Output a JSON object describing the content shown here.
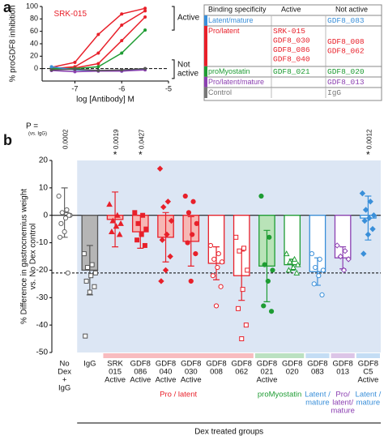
{
  "panel_labels": [
    "a",
    "b"
  ],
  "chart_data": [
    {
      "type": "line",
      "xlabel": "log [Antibody] M",
      "ylabel": "% proGDF8 inhibition",
      "xlim": [
        -7.7,
        -5.0
      ],
      "xticks": [
        -7,
        -6,
        -5
      ],
      "ylim": [
        -20,
        100
      ],
      "yticks": [
        0,
        20,
        40,
        60,
        80,
        100
      ],
      "reference_line": 0,
      "x": [
        -7.5,
        -7,
        -6.5,
        -6,
        -5.5
      ],
      "series": [
        {
          "color": "#e8202a",
          "values": [
            2,
            10,
            55,
            88,
            97
          ]
        },
        {
          "color": "#e8202a",
          "values": [
            0,
            3,
            25,
            70,
            93
          ]
        },
        {
          "color": "#e8202a",
          "values": [
            0,
            1,
            8,
            45,
            83
          ]
        },
        {
          "color": "#1e9c33",
          "values": [
            0,
            0,
            3,
            25,
            62
          ]
        },
        {
          "color": "#3a8fd9",
          "values": [
            3,
            -2,
            -3,
            -4,
            -1
          ]
        },
        {
          "color": "#8b3fb1",
          "values": [
            -3,
            -5,
            -4,
            -4,
            -2
          ]
        },
        {
          "color": "#555555",
          "values": [
            -2,
            -1,
            -3,
            -2,
            0
          ]
        }
      ],
      "annotations": {
        "highlight": "SRK-015",
        "active": "Active",
        "not_active": [
          "Not",
          "active"
        ]
      }
    },
    {
      "type": "bar",
      "ylabel": [
        "% Difference in gastrocnemius weight",
        "vs. No Dex control"
      ],
      "ylim": [
        -50,
        20
      ],
      "yticks": [
        -50,
        -40,
        -30,
        -20,
        -10,
        0,
        10,
        20
      ],
      "reference_line": -21,
      "categories": [
        [
          "No",
          "Dex",
          "+",
          "IgG"
        ],
        [
          "IgG"
        ],
        [
          "SRK",
          "015",
          "Active"
        ],
        [
          "GDF8",
          "086",
          "Active"
        ],
        [
          "GDF8",
          "040",
          "Active"
        ],
        [
          "GDF8",
          "030",
          "Active"
        ],
        [
          "GDF8",
          "008"
        ],
        [
          "GDF8",
          "062"
        ],
        [
          "GDF8",
          "021",
          "Active"
        ],
        [
          "GDF8",
          "020"
        ],
        [
          "GDF8",
          "083"
        ],
        [
          "GDF8",
          "013"
        ],
        [
          "GDF8",
          "C5",
          "Active"
        ]
      ],
      "values": [
        1,
        -20,
        -1.5,
        -6,
        -8,
        -9.5,
        -17.5,
        -22,
        -18.5,
        -18,
        -20.5,
        -15.5,
        -1
      ],
      "errors": [
        9,
        9,
        10,
        6,
        9,
        9,
        6,
        9,
        13,
        2,
        5,
        4,
        8
      ],
      "colors": [
        "#666666",
        "#555555",
        "#e8202a",
        "#e8202a",
        "#e8202a",
        "#e8202a",
        "#e8202a",
        "#e8202a",
        "#1e9c33",
        "#1e9c33",
        "#3a8fd9",
        "#8b3fb1",
        "#3a8fd9"
      ],
      "bar_fills": [
        null,
        "#b5b5b5",
        "#f6b7b4",
        "#f6b7b4",
        "#f6b7b4",
        "#f6b7b4",
        "#ffffff",
        "#ffffff",
        "#b9e3b8",
        "#ffffff",
        "#ffffff",
        "#ffffff",
        "#ffffff"
      ],
      "markers": [
        "circle-open",
        "square-open",
        "triangle",
        "square",
        "diamond",
        "circle",
        "circle-open",
        "square-open",
        "circle",
        "triangle-open",
        "circle-open",
        "diamond-open",
        "diamond"
      ],
      "points": [
        [
          7,
          2,
          1,
          0,
          -1,
          -3,
          0,
          -6,
          -8,
          -21
        ],
        [
          -14,
          -18,
          -19,
          -21,
          -22,
          -24,
          -26,
          -28,
          -44
        ],
        [
          4,
          0,
          -2,
          -3,
          -4,
          -6,
          -7
        ],
        [
          1,
          0,
          -3,
          -5,
          -7,
          -9,
          -11
        ],
        [
          17,
          5,
          3,
          -2,
          -7,
          -9,
          -15,
          -20,
          -24
        ],
        [
          7,
          5,
          1,
          -3,
          -7,
          -10,
          -14,
          -24
        ],
        [
          -11,
          -14,
          -16,
          -17,
          -19,
          -22,
          -26,
          -33
        ],
        [
          -8,
          -12,
          -13,
          -20,
          -27,
          -34,
          -40,
          -45
        ],
        [
          7,
          -8,
          -18,
          -20,
          -24,
          -33,
          -35
        ],
        [
          -14,
          -16,
          -17,
          -18,
          -19,
          -20,
          -21
        ],
        [
          -14,
          -16,
          -19,
          -20,
          -22,
          -25,
          -29
        ],
        [
          -11,
          -13,
          -15,
          -16,
          -20
        ],
        [
          8,
          5,
          2,
          0,
          -1,
          -2,
          -5,
          -7,
          -14
        ]
      ],
      "p_title": "P =",
      "p_subtitle": "(vs. IgG)",
      "p_values": [
        0.0002,
        null,
        0.0019,
        0.0427,
        null,
        null,
        null,
        null,
        null,
        null,
        null,
        null,
        0.0012
      ],
      "stars": [
        null,
        null,
        "*",
        "*",
        null,
        null,
        null,
        null,
        null,
        null,
        null,
        null,
        "*"
      ],
      "groups": [
        {
          "label": [
            "Pro / latent"
          ],
          "start": 2,
          "end": 7,
          "color": "#e8202a"
        },
        {
          "label": [
            "proMyostatin"
          ],
          "start": 8,
          "end": 9,
          "color": "#1e9c33"
        },
        {
          "label": [
            "Latent /",
            "mature"
          ],
          "start": 10,
          "end": 10,
          "color": "#3a8fd9"
        },
        {
          "label": [
            "Pro/",
            "latent/",
            "mature"
          ],
          "start": 11,
          "end": 11,
          "color": "#8b3fb1"
        },
        {
          "label": [
            "Latent /",
            "mature"
          ],
          "start": 12,
          "end": 12,
          "color": "#3a8fd9"
        }
      ],
      "treated": {
        "label": "Dex treated groups",
        "start": 1,
        "end": 12,
        "color": "#dce6f4"
      }
    }
  ],
  "table": {
    "header": [
      "Binding specificity",
      "Active",
      "Not active"
    ],
    "rows": [
      {
        "specificity": "Latent/mature",
        "color": "#3a8fd9",
        "active": [],
        "not_active": [
          "GDF8_083"
        ]
      },
      {
        "specificity": "Pro/latent",
        "color": "#e8202a",
        "active": [
          "SRK-015",
          "GDF8_030",
          "GDF8_086",
          "GDF8_040"
        ],
        "not_active": [
          "GDF8_008",
          "GDF8_062"
        ]
      },
      {
        "specificity": "proMyostatin",
        "color": "#1e9c33",
        "active": [
          "GDF8_021"
        ],
        "not_active": [
          "GDF8_020"
        ]
      },
      {
        "specificity": "Pro/latent/mature",
        "color": "#8b3fb1",
        "active": [],
        "not_active": [
          "GDF8_013"
        ]
      },
      {
        "specificity": "Control",
        "color": "#777777",
        "active": [],
        "not_active": [
          "IgG"
        ]
      }
    ]
  }
}
